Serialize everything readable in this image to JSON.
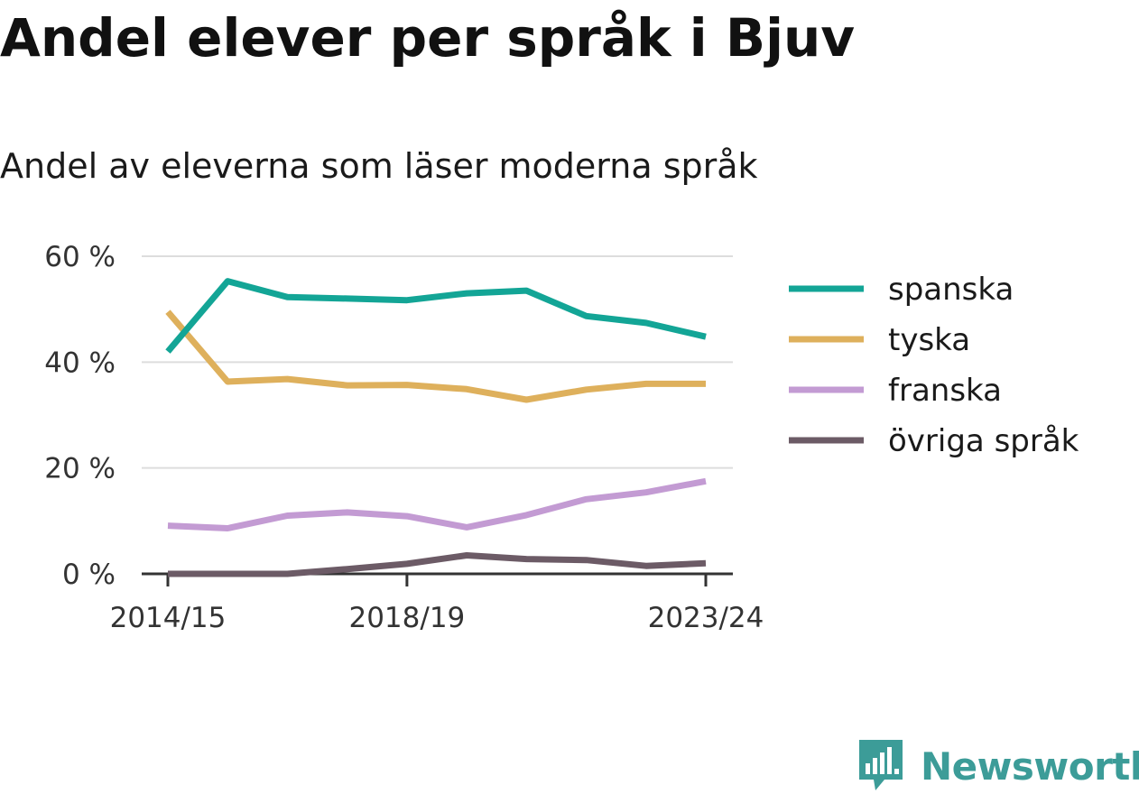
{
  "title": "Andel elever per språk i Bjuv",
  "subtitle": "Andel av eleverna som läser moderna språk",
  "brand": {
    "name": "Newsworthy",
    "color": "#3c9c98",
    "icon": "newsworthy-logo-icon"
  },
  "chart_data": {
    "type": "line",
    "title": "Andel elever per språk i Bjuv",
    "subtitle": "Andel av eleverna som läser moderna språk",
    "xlabel": "",
    "ylabel": "",
    "x": [
      "2014/15",
      "2015/16",
      "2016/17",
      "2017/18",
      "2018/19",
      "2019/20",
      "2020/21",
      "2021/22",
      "2022/23",
      "2023/24"
    ],
    "x_tick_labels": [
      "2014/15",
      "2018/19",
      "2023/24"
    ],
    "y_ticks": [
      0,
      20,
      40,
      60
    ],
    "y_tick_labels": [
      "0 %",
      "20 %",
      "40 %",
      "60 %"
    ],
    "ylim": [
      0,
      60
    ],
    "grid": true,
    "legend_position": "right",
    "series": [
      {
        "name": "spanska",
        "color": "#13a596",
        "values": [
          42,
          55.3,
          52.3,
          52,
          51.7,
          53,
          53.5,
          48.7,
          47.4,
          44.8
        ]
      },
      {
        "name": "tyska",
        "color": "#deb05c",
        "values": [
          49.5,
          36.3,
          36.8,
          35.6,
          35.7,
          34.9,
          32.9,
          34.8,
          35.9,
          35.9
        ]
      },
      {
        "name": "franska",
        "color": "#c39bd3",
        "values": [
          9.1,
          8.6,
          11,
          11.6,
          10.9,
          8.8,
          11.1,
          14.1,
          15.4,
          17.5
        ]
      },
      {
        "name": "övriga språk",
        "color": "#6c5b66",
        "values": [
          0,
          0,
          0,
          0.9,
          1.9,
          3.5,
          2.8,
          2.6,
          1.5,
          2
        ]
      }
    ]
  }
}
